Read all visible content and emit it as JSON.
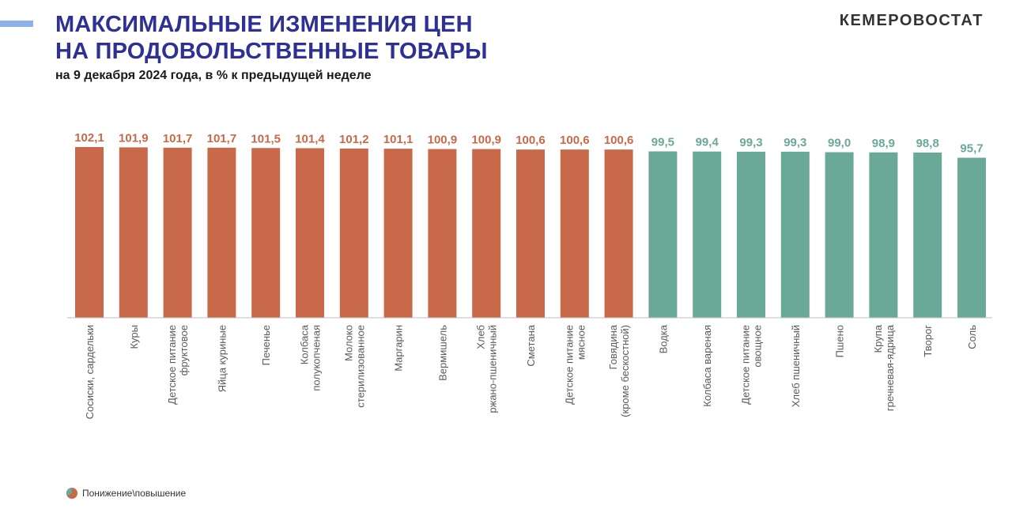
{
  "header": {
    "title_line1": "МАКСИМАЛЬНЫЕ ИЗМЕНЕНИЯ ЦЕН",
    "title_line2": "НА ПРОДОВОЛЬСТВЕННЫЕ ТОВАРЫ",
    "subtitle": "на 9 декабря 2024 года, в % к предыдущей неделе",
    "brand": "КЕМЕРОВОСТАТ"
  },
  "legend": {
    "label": "Понижение\\повышение"
  },
  "colors": {
    "increase": "#c8694a",
    "decrease": "#6aa898",
    "title": "#2e3192"
  },
  "chart_data": {
    "type": "bar",
    "categories": [
      [
        "Сосиски, сардельки"
      ],
      [
        "Куры"
      ],
      [
        "Детское питание",
        "фруктовое"
      ],
      [
        "Яйца куриные"
      ],
      [
        "Печенье"
      ],
      [
        "Колбаса",
        "полукопченая"
      ],
      [
        "Молоко",
        "стерилизованное"
      ],
      [
        "Маргарин"
      ],
      [
        "Вермишель"
      ],
      [
        "Хлеб",
        "ржано-пшеничный"
      ],
      [
        "Сметана"
      ],
      [
        "Детское питание",
        "мясное"
      ],
      [
        "Говядина",
        "(кроме бескостной)"
      ],
      [
        "Водка"
      ],
      [
        "Колбаса вареная"
      ],
      [
        "Детское питание",
        "овощное"
      ],
      [
        "Хлеб пшеничный"
      ],
      [
        "Пшено"
      ],
      [
        "Крупа",
        "гречневая-ядрица"
      ],
      [
        "Творог"
      ],
      [
        "Соль"
      ]
    ],
    "values": [
      102.1,
      101.9,
      101.7,
      101.7,
      101.5,
      101.4,
      101.2,
      101.1,
      100.9,
      100.9,
      100.6,
      100.6,
      100.6,
      99.5,
      99.4,
      99.3,
      99.3,
      99.0,
      98.9,
      98.8,
      95.7
    ],
    "labels": [
      "102,1",
      "101,9",
      "101,7",
      "101,7",
      "101,5",
      "101,4",
      "101,2",
      "101,1",
      "100,9",
      "100,9",
      "100,6",
      "100,6",
      "100,6",
      "99,5",
      "99,4",
      "99,3",
      "99,3",
      "99,0",
      "98,9",
      "98,8",
      "95,7"
    ],
    "direction": [
      "up",
      "up",
      "up",
      "up",
      "up",
      "up",
      "up",
      "up",
      "up",
      "up",
      "up",
      "up",
      "up",
      "down",
      "down",
      "down",
      "down",
      "down",
      "down",
      "down",
      "down"
    ],
    "ylim": [
      0,
      102.1
    ],
    "grid": false,
    "legend_position": "bottom-left",
    "xlabel": "",
    "ylabel": ""
  }
}
